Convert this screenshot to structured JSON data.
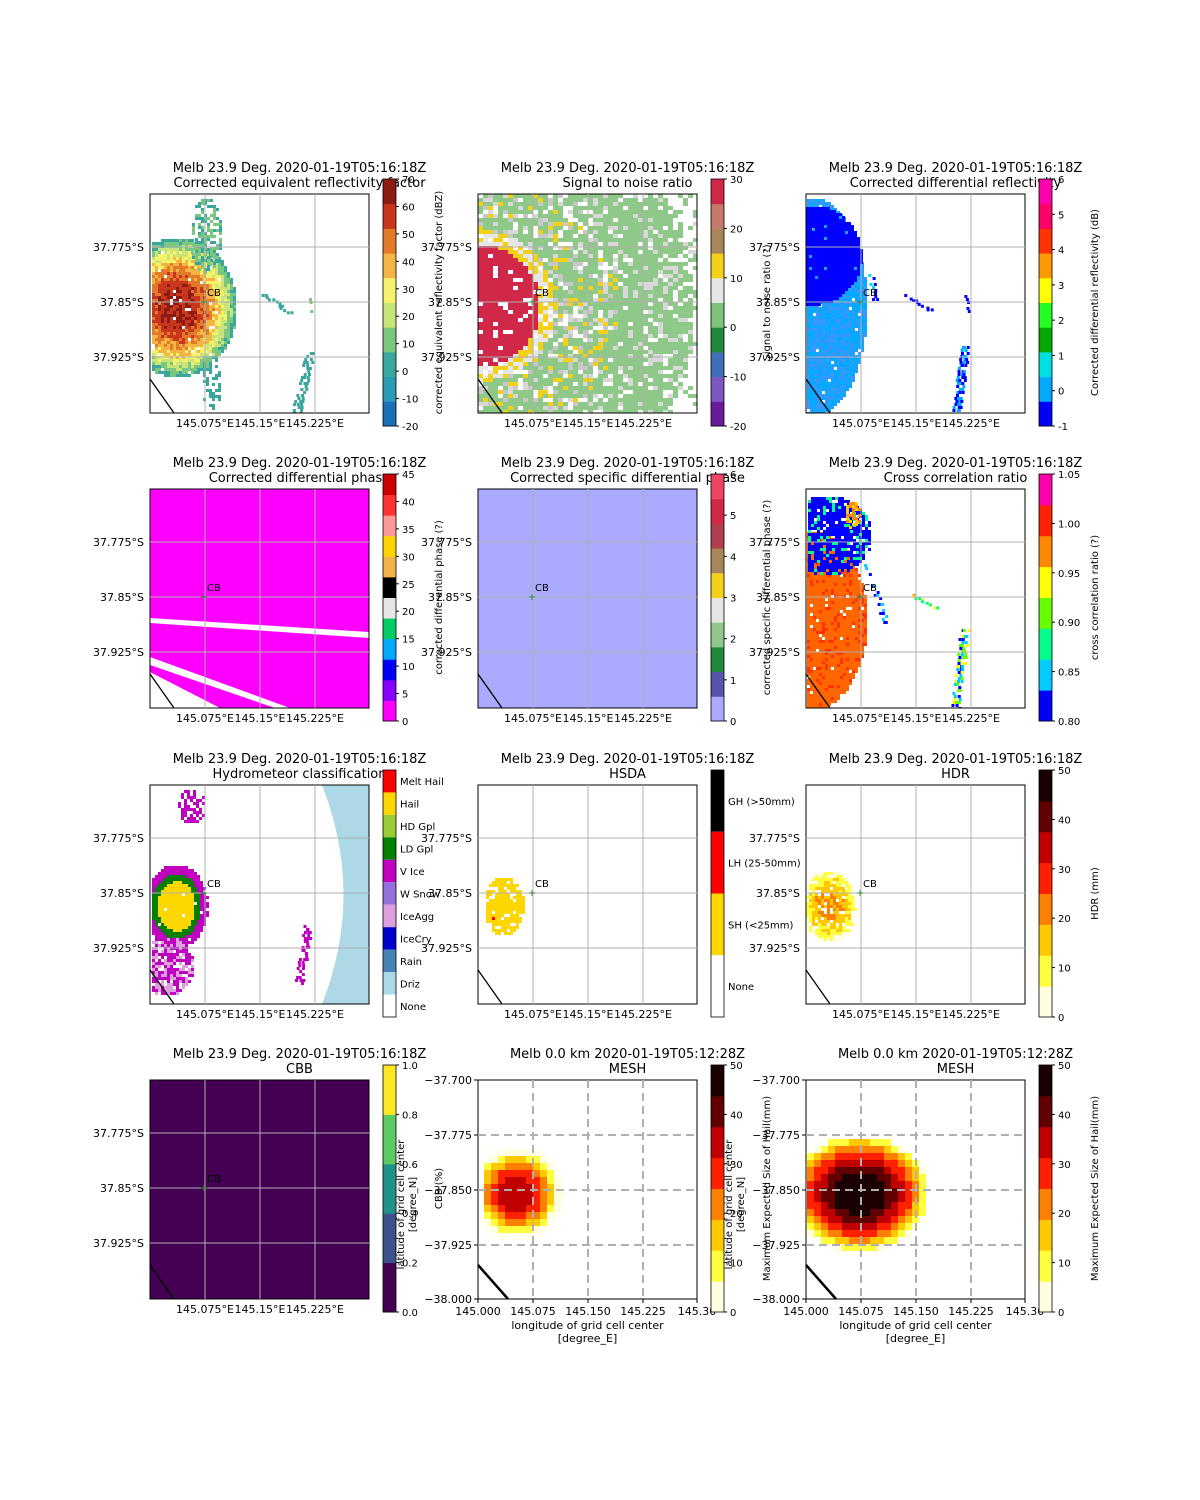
{
  "chart_data": [
    {
      "type": "heatmap",
      "title": "Melb 23.9 Deg. 2020-01-19T05:16:18Z",
      "subtitle": "Corrected equivalent reflectivity factor",
      "xticks": [
        "145.075°E",
        "145.15°E",
        "145.225°E"
      ],
      "yticks": [
        "37.775°S",
        "37.85°S",
        "37.925°S"
      ],
      "marker": "CB",
      "colorbar": {
        "label": "corrected equivalent reflectivity factor (dBZ)",
        "range": [
          -20,
          70
        ],
        "ticks": [
          "-20",
          "-10",
          "0",
          "10",
          "20",
          "30",
          "40",
          "50",
          "60",
          "70"
        ],
        "colors": [
          "#1a6fb5",
          "#2a9ab5",
          "#3aa79e",
          "#7bc77e",
          "#c9e57a",
          "#f6f26a",
          "#f4b542",
          "#e27a2a",
          "#c8361e",
          "#8e1a14"
        ]
      }
    },
    {
      "type": "heatmap",
      "title": "Melb 23.9 Deg. 2020-01-19T05:16:18Z",
      "subtitle": "Signal to noise ratio",
      "xticks": [
        "145.075°E",
        "145.15°E",
        "145.225°E"
      ],
      "yticks": [
        "37.775°S",
        "37.85°S",
        "37.925°S"
      ],
      "marker": "CB",
      "colorbar": {
        "label": "Signal to noise ratio (?)",
        "range": [
          -20,
          30
        ],
        "ticks": [
          "-20",
          "-10",
          "0",
          "10",
          "20",
          "30"
        ],
        "colors": [
          "#6a1b9a",
          "#7e57c2",
          "#3f6fb5",
          "#1e8a3a",
          "#7dc47a",
          "#e6e6e6",
          "#f3d11a",
          "#a9865a",
          "#c47a6a",
          "#d1284a"
        ]
      }
    },
    {
      "type": "heatmap",
      "title": "Melb 23.9 Deg. 2020-01-19T05:16:18Z",
      "subtitle": "Corrected differential reflectivity",
      "xticks": [
        "145.075°E",
        "145.15°E",
        "145.225°E"
      ],
      "yticks": [
        "37.775°S",
        "37.85°S",
        "37.925°S"
      ],
      "marker": "CB",
      "colorbar": {
        "label": "Corrected differential reflectivity (dB)",
        "range": [
          -1,
          6
        ],
        "ticks": [
          "-1",
          "0",
          "1",
          "2",
          "3",
          "4",
          "5",
          "6"
        ],
        "colors": [
          "#0000ff",
          "#00aaff",
          "#00e0e0",
          "#00aa00",
          "#22ff22",
          "#ffff00",
          "#ff9900",
          "#ff3300",
          "#ff0066",
          "#ff00aa"
        ]
      }
    },
    {
      "type": "heatmap",
      "title": "Melb 23.9 Deg. 2020-01-19T05:16:18Z",
      "subtitle": "Corrected differential phase",
      "xticks": [
        "145.075°E",
        "145.15°E",
        "145.225°E"
      ],
      "yticks": [
        "37.775°S",
        "37.85°S",
        "37.925°S"
      ],
      "marker": "CB",
      "colorbar": {
        "label": "corrected differential phase (?)",
        "range": [
          0,
          45
        ],
        "ticks": [
          "0",
          "5",
          "10",
          "15",
          "20",
          "25",
          "30",
          "35",
          "40",
          "45"
        ],
        "colors": [
          "#ff00ff",
          "#8800ff",
          "#0000ff",
          "#00aaff",
          "#00cc66",
          "#e6e6e6",
          "#000000",
          "#f2b24a",
          "#ffd400",
          "#ff9999",
          "#ff3333",
          "#cc0000"
        ]
      }
    },
    {
      "type": "heatmap",
      "title": "Melb 23.9 Deg. 2020-01-19T05:16:18Z",
      "subtitle": "Corrected specific differential phase",
      "xticks": [
        "145.075°E",
        "145.15°E",
        "145.225°E"
      ],
      "yticks": [
        "37.775°S",
        "37.85°S",
        "37.925°S"
      ],
      "marker": "CB",
      "colorbar": {
        "label": "corrected specific differential phase (?)",
        "range": [
          0,
          6
        ],
        "ticks": [
          "0",
          "1",
          "2",
          "3",
          "4",
          "5",
          "6"
        ],
        "colors": [
          "#aaaaff",
          "#5555aa",
          "#1e8a3a",
          "#8fc98a",
          "#e6e6e6",
          "#f3d11a",
          "#a9865a",
          "#b04050",
          "#d1284a",
          "#ee4466"
        ]
      }
    },
    {
      "type": "heatmap",
      "title": "Melb 23.9 Deg. 2020-01-19T05:16:18Z",
      "subtitle": "Cross correlation ratio",
      "xticks": [
        "145.075°E",
        "145.15°E",
        "145.225°E"
      ],
      "yticks": [
        "37.775°S",
        "37.85°S",
        "37.925°S"
      ],
      "marker": "CB",
      "colorbar": {
        "label": "cross correlation ratio (?)",
        "range": [
          0.8,
          1.05
        ],
        "ticks": [
          "0.80",
          "0.85",
          "0.90",
          "0.95",
          "1.00",
          "1.05"
        ],
        "colors": [
          "#0000ff",
          "#00ccff",
          "#00ff88",
          "#66ff00",
          "#ffff00",
          "#ff8800",
          "#ff2200",
          "#ff00aa"
        ]
      }
    },
    {
      "type": "heatmap",
      "title": "Melb 23.9 Deg. 2020-01-19T05:16:18Z",
      "subtitle": "Hydrometeor classification",
      "xticks": [
        "145.075°E",
        "145.15°E",
        "145.225°E"
      ],
      "yticks": [
        "37.775°S",
        "37.85°S",
        "37.925°S"
      ],
      "marker": "CB",
      "colorbar": {
        "label": "",
        "categories": [
          "Melt Hail",
          "Hail",
          "HD Gpl",
          "LD Gpl",
          "V Ice",
          "W Snow",
          "IceAgg",
          "IceCry",
          "Rain",
          "Driz",
          "None"
        ],
        "colors": [
          "#ff0000",
          "#ffd700",
          "#9acd32",
          "#008000",
          "#c000c0",
          "#9370db",
          "#dda0dd",
          "#0000cd",
          "#4682b4",
          "#add8e6",
          "#ffffff"
        ]
      }
    },
    {
      "type": "heatmap",
      "title": "Melb 23.9 Deg. 2020-01-19T05:16:18Z",
      "subtitle": "HSDA",
      "xticks": [
        "145.075°E",
        "145.15°E",
        "145.225°E"
      ],
      "yticks": [
        "37.775°S",
        "37.85°S",
        "37.925°S"
      ],
      "marker": "CB",
      "colorbar": {
        "label": "",
        "categories": [
          "GH (>50mm)",
          "LH (25-50mm)",
          "SH (<25mm)",
          "None"
        ],
        "colors": [
          "#000000",
          "#ff0000",
          "#ffd700",
          "#ffffff"
        ]
      }
    },
    {
      "type": "heatmap",
      "title": "Melb 23.9 Deg. 2020-01-19T05:16:18Z",
      "subtitle": "HDR",
      "xticks": [
        "145.075°E",
        "145.15°E",
        "145.225°E"
      ],
      "yticks": [
        "37.775°S",
        "37.85°S",
        "37.925°S"
      ],
      "marker": "CB",
      "colorbar": {
        "label": "HDR (mm)",
        "range": [
          0,
          50
        ],
        "ticks": [
          "0",
          "10",
          "20",
          "30",
          "40",
          "50"
        ],
        "colors": [
          "#ffffe0",
          "#ffff40",
          "#ffc800",
          "#ff8000",
          "#ff2000",
          "#c00000",
          "#600000",
          "#1a0000"
        ]
      }
    },
    {
      "type": "heatmap",
      "title": "Melb 23.9 Deg. 2020-01-19T05:16:18Z",
      "subtitle": "CBB",
      "xticks": [
        "145.075°E",
        "145.15°E",
        "145.225°E"
      ],
      "yticks": [
        "37.775°S",
        "37.85°S",
        "37.925°S"
      ],
      "marker": "CB",
      "colorbar": {
        "label": "CBB (%)",
        "range": [
          0.0,
          1.0
        ],
        "ticks": [
          "0.0",
          "0.2",
          "0.4",
          "0.6",
          "0.8",
          "1.0"
        ],
        "colors": [
          "#440154",
          "#3b528b",
          "#21918c",
          "#5ec962",
          "#fde725"
        ]
      },
      "ylabel_overlap": [
        "latitude of grid cell center",
        "[degree_N]"
      ]
    },
    {
      "type": "heatmap",
      "title": "Melb 0.0 km 2020-01-19T05:12:28Z",
      "subtitle": "MESH",
      "xticks": [
        "145.000",
        "145.075",
        "145.150",
        "145.225",
        "145.30"
      ],
      "yticks": [
        "−37.700",
        "−37.775",
        "−37.850",
        "−37.925",
        "−38.000"
      ],
      "xlabel": [
        "longitude of grid cell center",
        "[degree_E]"
      ],
      "colorbar": {
        "label": "Maximum Expected Size of Hail(mm)",
        "range": [
          0,
          50
        ],
        "ticks": [
          "0",
          "10",
          "20",
          "30",
          "40",
          "50"
        ],
        "colors": [
          "#ffffe0",
          "#ffff40",
          "#ffc800",
          "#ff8000",
          "#ff2000",
          "#c00000",
          "#600000",
          "#1a0000"
        ]
      },
      "ylabel_overlap": [
        "latitude of grid cell center",
        "[degree_N]"
      ]
    },
    {
      "type": "heatmap",
      "title": "Melb 0.0 km 2020-01-19T05:12:28Z",
      "subtitle": "MESH",
      "xticks": [
        "145.000",
        "145.075",
        "145.150",
        "145.225",
        "145.30"
      ],
      "yticks": [
        "−37.700",
        "−37.775",
        "−37.850",
        "−37.925",
        "−38.000"
      ],
      "xlabel": [
        "longitude of grid cell center",
        "[degree_E]"
      ],
      "colorbar": {
        "label": "Maximum Expected Size of Hail(mm)",
        "range": [
          0,
          50
        ],
        "ticks": [
          "0",
          "10",
          "20",
          "30",
          "40",
          "50"
        ],
        "colors": [
          "#ffffe0",
          "#ffff40",
          "#ffc800",
          "#ff8000",
          "#ff2000",
          "#c00000",
          "#600000",
          "#1a0000"
        ]
      }
    }
  ]
}
